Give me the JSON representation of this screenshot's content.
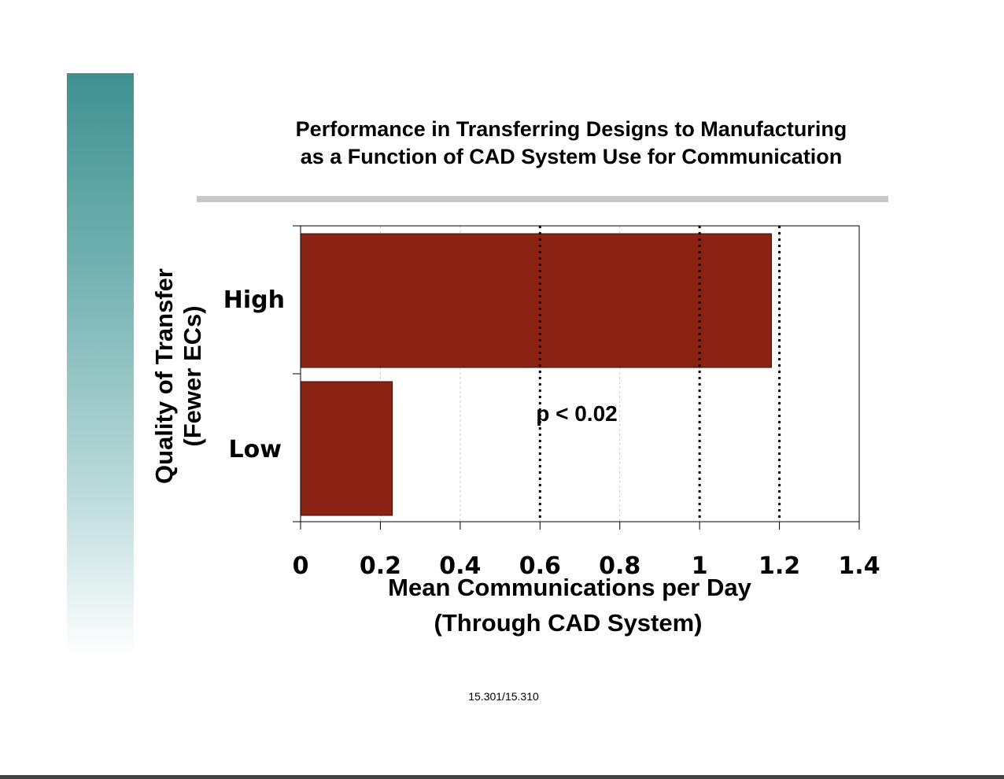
{
  "slide": {
    "title_line_1": "Performance in Transferring Designs to Manufacturing",
    "title_line_2": "as a Function of CAD System Use for Communication",
    "footer": "15.301/15.310",
    "accent_color": "#3f9190"
  },
  "chart_data": {
    "type": "bar",
    "orientation": "horizontal",
    "categories": [
      "High",
      "Low"
    ],
    "values": [
      1.18,
      0.23
    ],
    "bar_color": "#8b2314",
    "xlim": [
      0,
      1.4
    ],
    "x_ticks": [
      0,
      0.2,
      0.4,
      0.6,
      0.8,
      1,
      1.2,
      1.4
    ],
    "x_tick_labels": [
      "0",
      "0.2",
      "0.4",
      "0.6",
      "0.8",
      "1",
      "1.2",
      "1.4"
    ],
    "dotted_reference_lines": [
      0.6,
      1,
      1.2
    ],
    "grid": true,
    "xlabel_line_1": "Mean Communications per Day",
    "xlabel_line_2": "(Through CAD System)",
    "ylabel_line_1": "Quality of Transfer",
    "ylabel_line_2": "(Fewer ECs)",
    "annotation": "p < 0.02",
    "annotation_x": 0.59
  }
}
